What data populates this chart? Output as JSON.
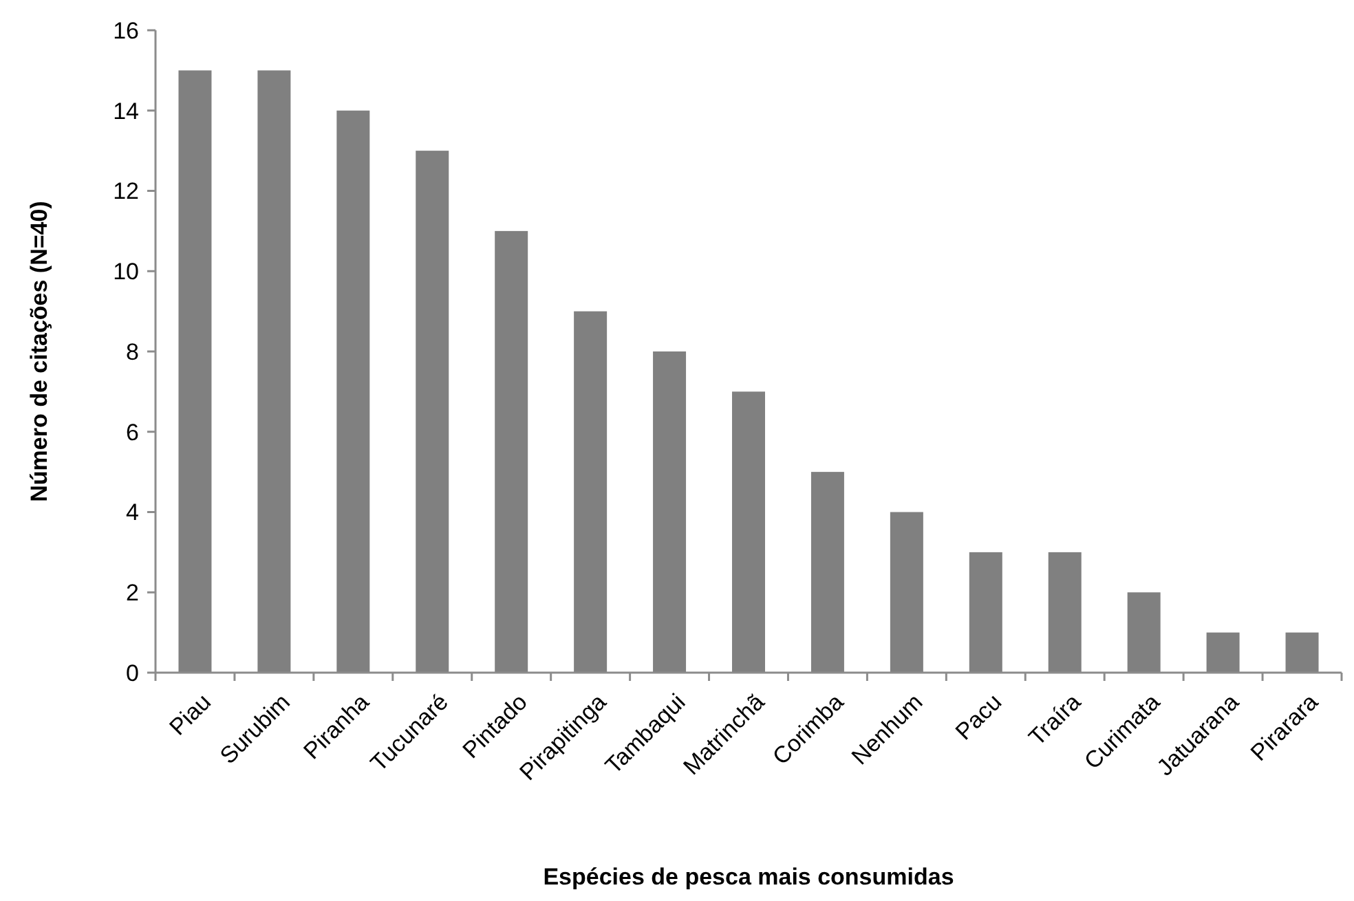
{
  "chart_data": {
    "type": "bar",
    "xlabel": "Espécies de pesca mais consumidas",
    "ylabel": "Número de citações (N=40)",
    "categories": [
      "Piau",
      "Surubim",
      "Piranha",
      "Tucunaré",
      "Pintado",
      "Pirapitinga",
      "Tambaqui",
      "Matrinchã",
      "Corimba",
      "Nenhum",
      "Pacu",
      "Traíra",
      "Curimata",
      "Jatuarana",
      "Pirarara"
    ],
    "values": [
      15,
      15,
      14,
      13,
      11,
      9,
      8,
      7,
      5,
      4,
      3,
      3,
      2,
      1,
      1
    ],
    "color": "#808080",
    "ylim": [
      0,
      16
    ],
    "yticks": [
      0,
      2,
      4,
      6,
      8,
      10,
      12,
      14,
      16
    ],
    "grid": false
  }
}
